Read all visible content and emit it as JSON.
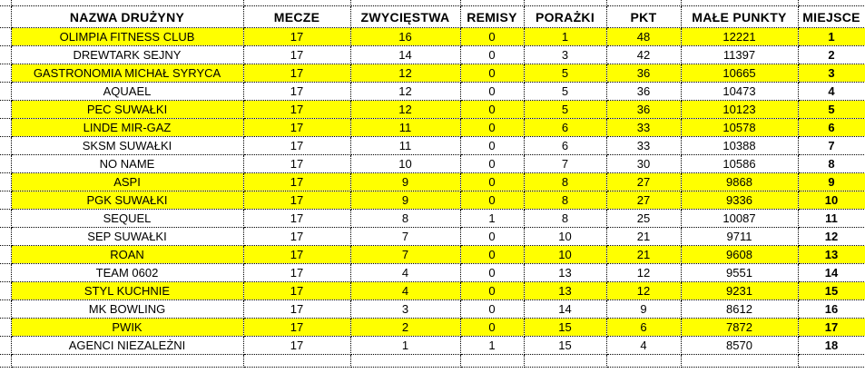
{
  "colors": {
    "highlight_row": "#FFFF00",
    "plain_row": "#FFFFFF",
    "margin_column": "#C0C0C0",
    "grid_border": "#000000",
    "empty_row_gridline": "#C8C8C8",
    "text": "#000000"
  },
  "table": {
    "columns": [
      "NAZWA DRUŻYNY",
      "MECZE",
      "ZWYCIĘSTWA",
      "REMISY",
      "PORAŻKI",
      "PKT",
      "MAŁE PUNKTY",
      "MIEJSCE"
    ],
    "rows": [
      {
        "cells": [
          "OLIMPIA FITNESS CLUB",
          17,
          16,
          0,
          1,
          48,
          12221,
          1
        ],
        "highlighted": true
      },
      {
        "cells": [
          "DREWTARK SEJNY",
          17,
          14,
          0,
          3,
          42,
          11397,
          2
        ],
        "highlighted": false
      },
      {
        "cells": [
          "GASTRONOMIA MICHAŁ SYRYCA",
          17,
          12,
          0,
          5,
          36,
          10665,
          3
        ],
        "highlighted": true
      },
      {
        "cells": [
          "AQUAEL",
          17,
          12,
          0,
          5,
          36,
          10473,
          4
        ],
        "highlighted": false
      },
      {
        "cells": [
          "PEC SUWAŁKI",
          17,
          12,
          0,
          5,
          36,
          10123,
          5
        ],
        "highlighted": true
      },
      {
        "cells": [
          "LINDE MIR-GAZ",
          17,
          11,
          0,
          6,
          33,
          10578,
          6
        ],
        "highlighted": true
      },
      {
        "cells": [
          "SKSM SUWAŁKI",
          17,
          11,
          0,
          6,
          33,
          10388,
          7
        ],
        "highlighted": false
      },
      {
        "cells": [
          "NO NAME",
          17,
          10,
          0,
          7,
          30,
          10586,
          8
        ],
        "highlighted": false
      },
      {
        "cells": [
          "ASPI",
          17,
          9,
          0,
          8,
          27,
          9868,
          9
        ],
        "highlighted": true
      },
      {
        "cells": [
          "PGK SUWAŁKI",
          17,
          9,
          0,
          8,
          27,
          9336,
          10
        ],
        "highlighted": true
      },
      {
        "cells": [
          "SEQUEL",
          17,
          8,
          1,
          8,
          25,
          10087,
          11
        ],
        "highlighted": false
      },
      {
        "cells": [
          "SEP SUWAŁKI",
          17,
          7,
          0,
          10,
          21,
          9711,
          12
        ],
        "highlighted": false
      },
      {
        "cells": [
          "ROAN",
          17,
          7,
          0,
          10,
          21,
          9608,
          13
        ],
        "highlighted": true
      },
      {
        "cells": [
          "TEAM 0602",
          17,
          4,
          0,
          13,
          12,
          9551,
          14
        ],
        "highlighted": false
      },
      {
        "cells": [
          "STYL KUCHNIE",
          17,
          4,
          0,
          13,
          12,
          9231,
          15
        ],
        "highlighted": true
      },
      {
        "cells": [
          "MK BOWLING",
          17,
          3,
          0,
          14,
          9,
          8612,
          16
        ],
        "highlighted": false
      },
      {
        "cells": [
          "PWIK",
          17,
          2,
          0,
          15,
          6,
          7872,
          17
        ],
        "highlighted": true
      },
      {
        "cells": [
          "AGENCI NIEZALEŻNI",
          17,
          1,
          1,
          15,
          4,
          8570,
          18
        ],
        "highlighted": false
      }
    ]
  }
}
